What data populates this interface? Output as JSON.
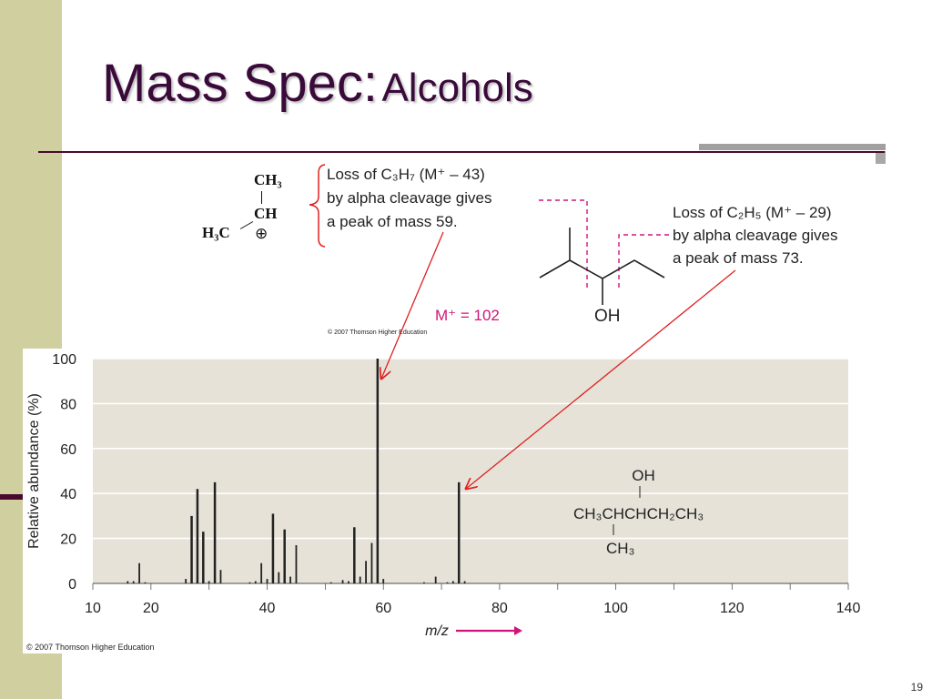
{
  "slide": {
    "title_main": "Mass Spec:",
    "title_sub": "Alcohols",
    "page_number": "19",
    "colors": {
      "title": "#3a0a3a",
      "band": "#cfcf9f",
      "accent": "#d0157a",
      "arrow": "#e02020"
    }
  },
  "fragment_structure": {
    "ch3": "CH₃",
    "ch": "CH",
    "h3c": "H₃C",
    "charge": "⊕"
  },
  "annotations": {
    "left_line1": "Loss of C₃H₇ (M⁺ – 43)",
    "left_line2": "by alpha cleavage gives",
    "left_line3": "a peak of mass 59.",
    "right_line1": "Loss of C₂H₅ (M⁺ – 29)",
    "right_line2": "by alpha cleavage gives",
    "right_line3": "a peak of mass 73.",
    "molecular_ion": "M⁺ = 102",
    "oh_label": "OH",
    "copyright_top": "© 2007 Thomson Higher Education"
  },
  "chart_data": {
    "type": "bar",
    "xlabel": "m/z",
    "ylabel": "Relative abundance (%)",
    "xlim": [
      10,
      140
    ],
    "ylim": [
      0,
      100
    ],
    "x_ticks": [
      10,
      20,
      40,
      60,
      80,
      100,
      120,
      140
    ],
    "y_ticks": [
      0,
      20,
      40,
      60,
      80,
      100
    ],
    "grid": "horizontal",
    "x": [
      16,
      17,
      18,
      19,
      26,
      27,
      28,
      29,
      30,
      31,
      32,
      37,
      38,
      39,
      40,
      41,
      42,
      43,
      44,
      45,
      51,
      53,
      54,
      55,
      56,
      57,
      58,
      59,
      60,
      67,
      69,
      71,
      72,
      73,
      74
    ],
    "values": [
      1,
      1,
      9,
      0.5,
      2,
      30,
      42,
      23,
      1,
      45,
      6,
      0.5,
      1,
      9,
      2,
      31,
      5,
      24,
      3,
      17,
      0.5,
      1.5,
      1,
      25,
      3,
      10,
      18,
      100,
      2,
      0.5,
      3,
      0.5,
      1,
      45,
      1
    ],
    "structure_label_oh": "OH",
    "structure_label_chain": "CH₃CHCHCH₂CH₃",
    "structure_label_ch3": "CH₃",
    "copyright": "© 2007 Thomson Higher Education"
  }
}
